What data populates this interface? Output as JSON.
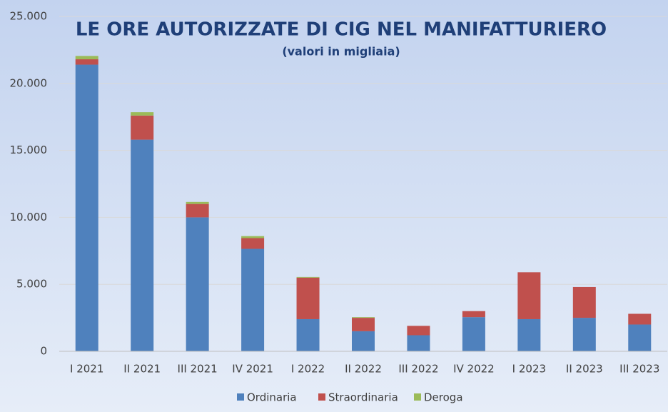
{
  "chart_data": {
    "type": "stacked_bar",
    "title": "LE ORE AUTORIZZATE DI CIG NEL MANIFATTURIERO",
    "subtitle": "(valori in migliaia)",
    "categories": [
      "I 2021",
      "II 2021",
      "III 2021",
      "IV 2021",
      "I 2022",
      "II 2022",
      "III 2022",
      "IV 2022",
      "I 2023",
      "II 2023",
      "III 2023"
    ],
    "series": [
      {
        "name": "Ordinaria",
        "color": "#4f81bd",
        "values": [
          21400,
          15800,
          10000,
          7650,
          2400,
          1500,
          1200,
          2550,
          2400,
          2500,
          2000
        ]
      },
      {
        "name": "Straordinaria",
        "color": "#c0504d",
        "values": [
          400,
          1800,
          1000,
          800,
          3100,
          1000,
          700,
          450,
          3500,
          2300,
          800
        ]
      },
      {
        "name": "Deroga",
        "color": "#9bbb59",
        "values": [
          250,
          250,
          150,
          150,
          50,
          50,
          0,
          0,
          0,
          0,
          0
        ]
      }
    ],
    "ylim": [
      0,
      25000
    ],
    "yticks": [
      0,
      {
        "value": 5000,
        "label": "5.000"
      },
      {
        "value": 10000,
        "label": "10.000"
      },
      {
        "value": 15000,
        "label": "15.000"
      },
      {
        "value": 20000,
        "label": "20.000"
      },
      {
        "value": 25000,
        "label": "25.000"
      }
    ],
    "legend": "bottom"
  }
}
